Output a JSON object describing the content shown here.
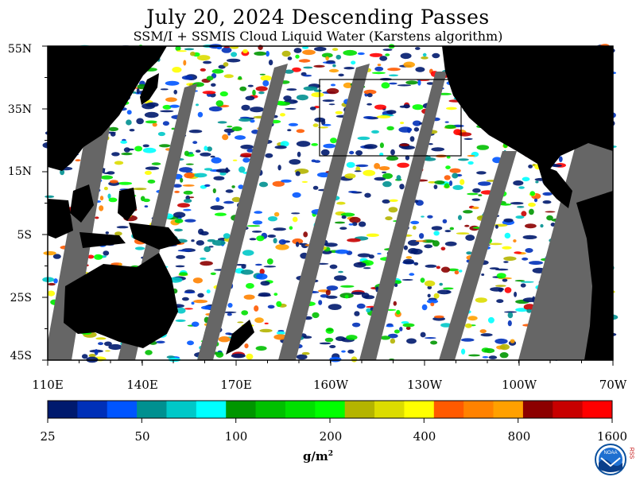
{
  "title": "July 20, 2024  Descending Passes",
  "subtitle": "SSM/I + SSMIS Cloud Liquid Water (Karstens algorithm)",
  "map": {
    "lat_labels": [
      "55N",
      "35N",
      "15N",
      "5S",
      "25S",
      "45S"
    ],
    "lon_labels": [
      "110E",
      "140E",
      "170E",
      "160W",
      "130W",
      "100W",
      "70W"
    ],
    "colors": {
      "land": "#000000",
      "no_data": "#666666",
      "clear_ocean": "#ffffff",
      "box": "#000000"
    }
  },
  "colorbar": {
    "labels": [
      "25",
      "50",
      "100",
      "200",
      "400",
      "800",
      "1600"
    ],
    "units": "g/m",
    "units_sup": "2",
    "colors": [
      "#001a6e",
      "#0030b8",
      "#0055ff",
      "#009090",
      "#00c8c8",
      "#00ffff",
      "#009600",
      "#00c000",
      "#00e000",
      "#00ff00",
      "#b4b400",
      "#dcdc00",
      "#ffff00",
      "#ff5a00",
      "#ff8200",
      "#ffa000",
      "#8c0000",
      "#c80000",
      "#ff0000"
    ]
  },
  "logo": {
    "text": "NOAA",
    "side_letters": "RSS"
  }
}
